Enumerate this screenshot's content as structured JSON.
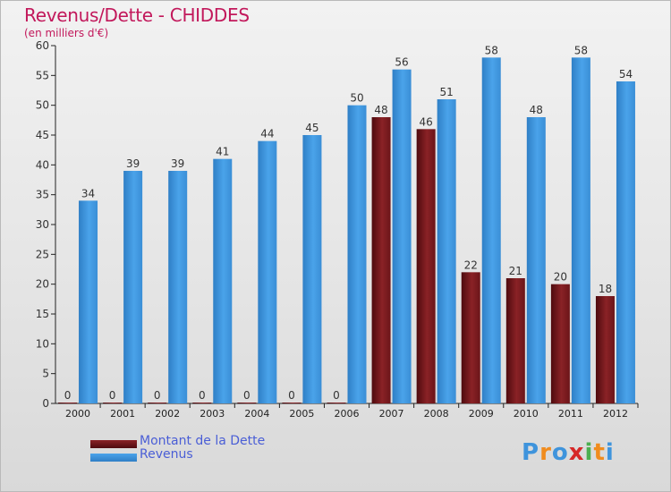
{
  "chart_data": {
    "type": "bar",
    "title": "Revenus/Dette - CHIDDES",
    "subtitle": "(en milliers d'€)",
    "categories": [
      "2000",
      "2001",
      "2002",
      "2003",
      "2004",
      "2005",
      "2006",
      "2007",
      "2008",
      "2009",
      "2010",
      "2011",
      "2012"
    ],
    "series": [
      {
        "name": "Montant de la Dette",
        "values": [
          0,
          0,
          0,
          0,
          0,
          0,
          0,
          48,
          46,
          22,
          21,
          20,
          18
        ],
        "color": "#7a1a1f"
      },
      {
        "name": "Revenus",
        "values": [
          34,
          39,
          39,
          41,
          44,
          45,
          50,
          56,
          51,
          58,
          48,
          58,
          54
        ],
        "color": "#3f94dc"
      }
    ],
    "ylim": [
      0,
      60
    ],
    "yticks": [
      0,
      5,
      10,
      15,
      20,
      25,
      30,
      35,
      40,
      45,
      50,
      55,
      60
    ],
    "grid": false,
    "legend_position": "bottom-left"
  },
  "logo": {
    "letters": [
      "P",
      "r",
      "o",
      "x",
      "i",
      "t",
      "i"
    ],
    "colors": [
      "#3f94dc",
      "#f08c1e",
      "#3f94dc",
      "#d62828",
      "#4caf50",
      "#f08c1e",
      "#3f94dc"
    ]
  }
}
